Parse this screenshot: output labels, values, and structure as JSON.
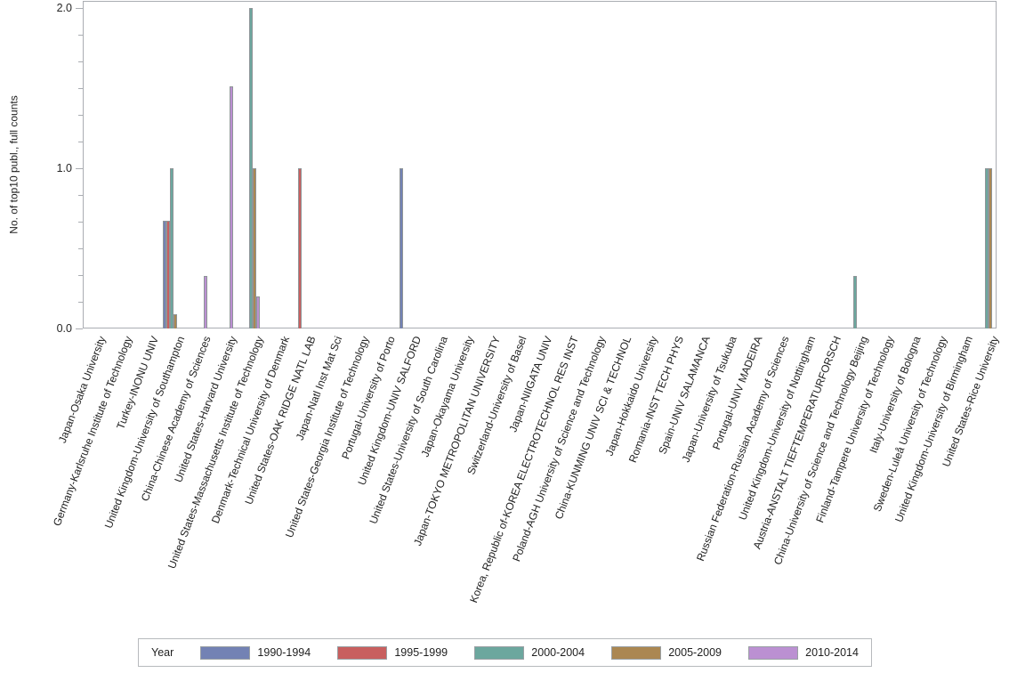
{
  "chart_data": {
    "type": "bar",
    "title": "",
    "xlabel": "",
    "ylabel": "No. of top10 publ., full counts",
    "ylim": [
      0,
      2.04
    ],
    "ytick_labels": [
      "0.0",
      "1.0",
      "2.0"
    ],
    "ytick_values": [
      0,
      1,
      2
    ],
    "minor_ticks_per_unit": 6,
    "grid": false,
    "legend": {
      "title": "Year",
      "position": "bottom"
    },
    "categories": [
      "Japan-Osaka University",
      "Germany-Karlsruhe Institute of Technology",
      "Turkey-INONU UNIV",
      "United Kingdom-University of Southampton",
      "China-Chinese Academy of Sciences",
      "United States-Harvard University",
      "United States-Massachusetts Institute of Technology",
      "Denmark-Technical University of Denmark",
      "United States-OAK RIDGE NATL LAB",
      "Japan-Natl Inst Mat Sci",
      "United States-Georgia Institute of Technology",
      "Portugal-University of Porto",
      "United Kingdom-UNIV SALFORD",
      "United States-University of South Carolina",
      "Japan-Okayama University",
      "Japan-TOKYO METROPOLITAN UNIVERSITY",
      "Switzerland-University of Basel",
      "Japan-NIIGATA UNIV",
      "Korea, Republic of-KOREA ELECTROTECHNOL RES INST",
      "Poland-AGH University of Science and Technology",
      "China-KUNMING UNIV SCI & TECHNOL",
      "Japan-Hokkaido University",
      "Romania-INST TECH PHYS",
      "Spain-UNIV SALAMANCA",
      "Japan-University of Tsukuba",
      "Portugal-UNIV MADEIRA",
      "Russian Federation-Russian Academy of Sciences",
      "United Kingdom-University of Nottingham",
      "Austria-ANSTALT TIEFTEMPERATURFORSCH",
      "China-University of Science and Technology Beijing",
      "Finland-Tampere University of Technology",
      "Italy-University of Bologna",
      "Sweden-Luleå University of Technology",
      "United Kingdom-University of Birmingham",
      "United States-Rice University"
    ],
    "series": [
      {
        "name": "1990-1994",
        "color": "#7382B4",
        "values": [
          0,
          0,
          0,
          0.67,
          0,
          0,
          0,
          0,
          0,
          0,
          0,
          0,
          1,
          0,
          0,
          0,
          0,
          0,
          0,
          0,
          0,
          0,
          0,
          0,
          0,
          0,
          0,
          0,
          0,
          0,
          0,
          0,
          0,
          0,
          0
        ]
      },
      {
        "name": "1995-1999",
        "color": "#C85F5F",
        "values": [
          0,
          0,
          0,
          0.67,
          0,
          0,
          0,
          0,
          1,
          0,
          0,
          0,
          0,
          0,
          0,
          0,
          0,
          0,
          0,
          0,
          0,
          0,
          0,
          0,
          0,
          0,
          0,
          0,
          0,
          0,
          0,
          0,
          0,
          0,
          0
        ]
      },
      {
        "name": "2000-2004",
        "color": "#6CA79E",
        "values": [
          0,
          0,
          0,
          1,
          0,
          0,
          2,
          0,
          0,
          0,
          0,
          0,
          0,
          0,
          0,
          0,
          0,
          0,
          0,
          0,
          0,
          0,
          0,
          0,
          0,
          0,
          0,
          0,
          0,
          0.33,
          0,
          0,
          0,
          0,
          1
        ]
      },
      {
        "name": "2005-2009",
        "color": "#AB8752",
        "values": [
          0,
          0,
          0,
          0.09,
          0,
          0,
          1,
          0,
          0,
          0,
          0,
          0,
          0,
          0,
          0,
          0,
          0,
          0,
          0,
          0,
          0,
          0,
          0,
          0,
          0,
          0,
          0,
          0,
          0,
          0,
          0,
          0,
          0,
          0,
          1
        ]
      },
      {
        "name": "2010-2014",
        "color": "#BB90D2",
        "values": [
          0,
          0,
          0,
          0,
          0.33,
          1.51,
          0.2,
          0,
          0,
          0,
          0,
          0,
          0,
          0,
          0,
          0,
          0,
          0,
          0,
          0,
          0,
          0,
          0,
          0,
          0,
          0,
          0,
          0,
          0,
          0,
          0,
          0,
          0,
          0,
          0
        ]
      }
    ],
    "axis_color": "#aaadb2",
    "bar_border_color": "#8f9598",
    "text_color": "#262626"
  }
}
